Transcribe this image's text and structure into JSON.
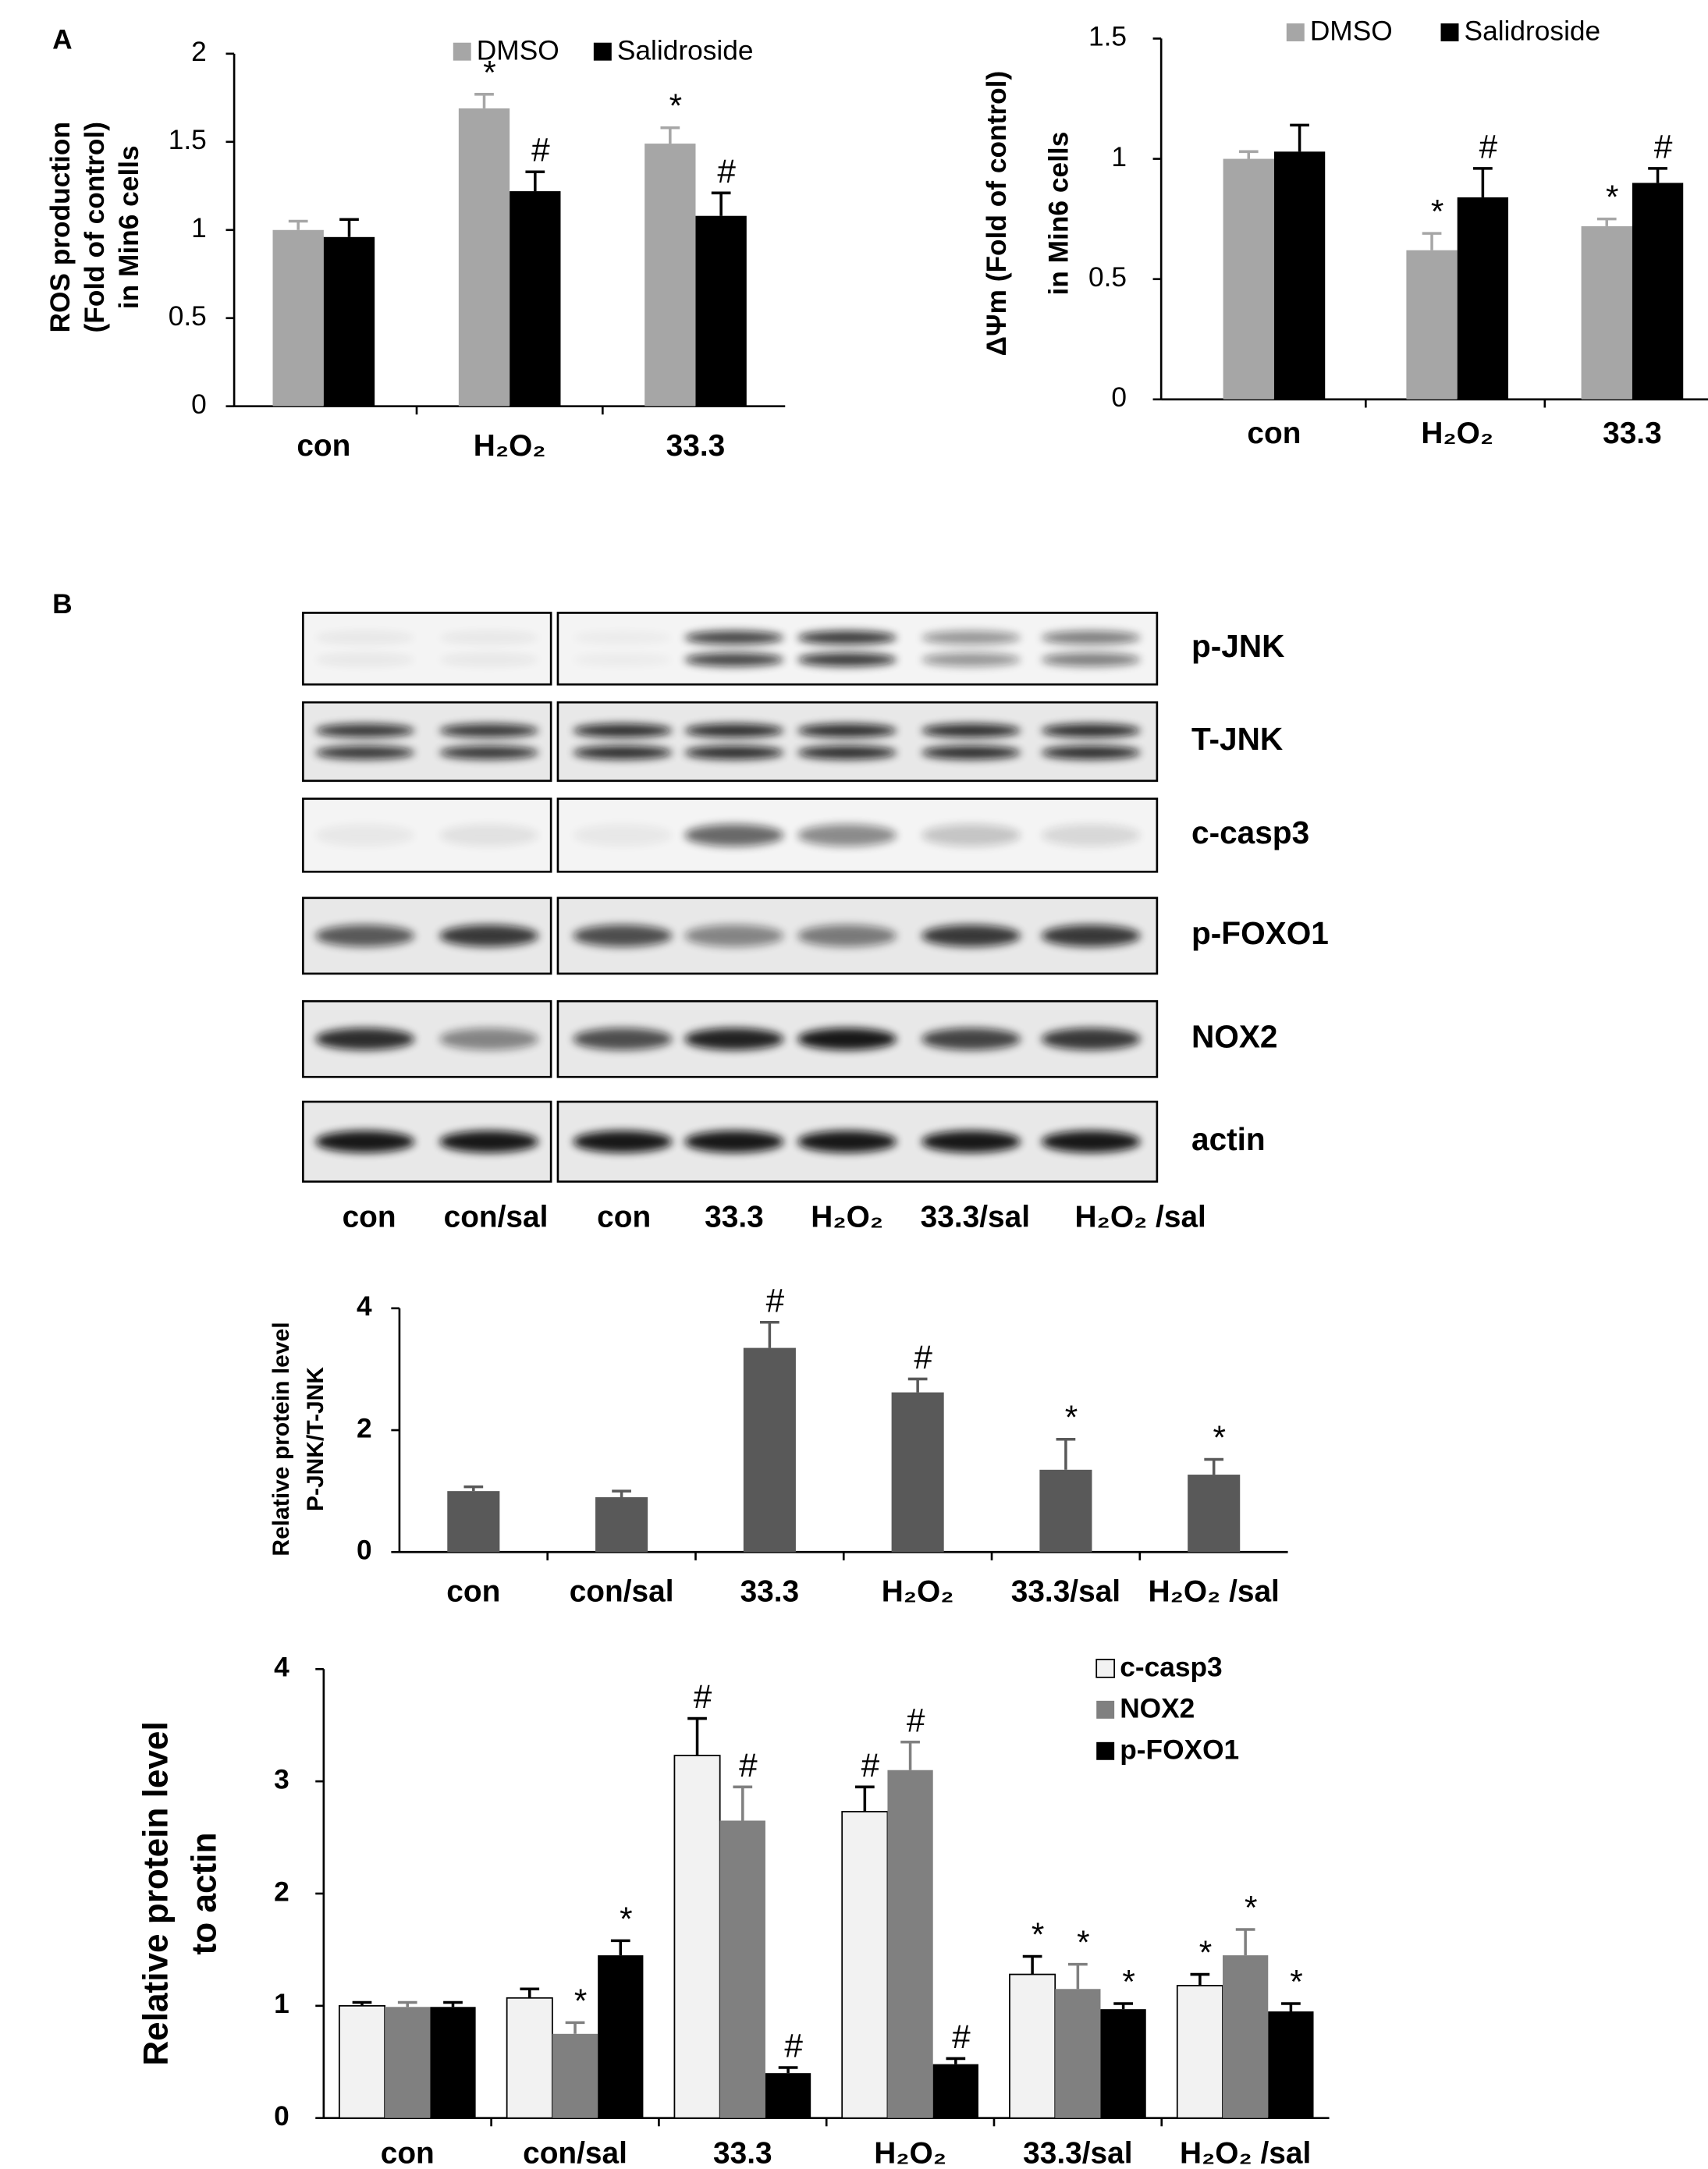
{
  "panels": [
    "A",
    "B"
  ],
  "blot": {
    "rows": [
      "p-JNK",
      "T-JNK",
      "c-casp3",
      "p-FOXO1",
      "NOX2",
      "actin"
    ],
    "lanes": [
      "con",
      "con/sal",
      "con",
      "33.3",
      "H₂O₂",
      "33.3/sal",
      "H₂O₂ /sal"
    ]
  },
  "chart_data": [
    {
      "type": "bar",
      "ylabel": [
        "ROS production",
        "(Fold of control)",
        "in Min6 cells"
      ],
      "categories": [
        "con",
        "H₂O₂",
        "33.3"
      ],
      "series": [
        {
          "name": "DMSO",
          "color": "#a6a6a6",
          "values": [
            1.0,
            1.69,
            1.49
          ],
          "errors": [
            0.05,
            0.08,
            0.09
          ],
          "annotations": [
            null,
            "*",
            "*"
          ]
        },
        {
          "name": "Salidroside",
          "color": "#000000",
          "values": [
            0.96,
            1.22,
            1.08
          ],
          "errors": [
            0.1,
            0.11,
            0.13
          ],
          "annotations": [
            null,
            "#",
            "#"
          ]
        }
      ],
      "ylim": [
        0,
        2
      ],
      "yticks": [
        0,
        0.5,
        1,
        1.5,
        2
      ]
    },
    {
      "type": "bar",
      "ylabel": [
        "ΔΨm (Fold of control)",
        "in Min6 cells"
      ],
      "categories": [
        "con",
        "H₂O₂",
        "33.3"
      ],
      "series": [
        {
          "name": "DMSO",
          "color": "#a6a6a6",
          "values": [
            1.0,
            0.62,
            0.72
          ],
          "errors": [
            0.03,
            0.07,
            0.03
          ],
          "annotations": [
            null,
            "*",
            "*"
          ]
        },
        {
          "name": "Salidroside",
          "color": "#000000",
          "values": [
            1.03,
            0.84,
            0.9
          ],
          "errors": [
            0.11,
            0.12,
            0.06
          ],
          "annotations": [
            null,
            "#",
            "#"
          ]
        }
      ],
      "ylim": [
        0,
        1.5
      ],
      "yticks": [
        0,
        0.5,
        1,
        1.5
      ]
    },
    {
      "type": "bar",
      "ylabel": [
        "Relative protein level",
        "P-JNK/T-JNK"
      ],
      "categories": [
        "con",
        "con/sal",
        "33.3",
        "H₂O₂",
        "33.3/sal",
        "H₂O₂ /sal"
      ],
      "series": [
        {
          "color": "#595959",
          "values": [
            1.0,
            0.9,
            3.35,
            2.62,
            1.35,
            1.27
          ],
          "errors": [
            0.07,
            0.1,
            0.42,
            0.22,
            0.5,
            0.25
          ],
          "annotations": [
            null,
            null,
            "#",
            "#",
            "*",
            "*"
          ]
        }
      ],
      "ylim": [
        0,
        4
      ],
      "yticks": [
        0,
        2,
        4
      ]
    },
    {
      "type": "bar",
      "ylabel": [
        "Relative protein level",
        "to actin"
      ],
      "categories": [
        "con",
        "con/sal",
        "33.3",
        "H₂O₂",
        "33.3/sal",
        "H₂O₂ /sal"
      ],
      "series": [
        {
          "name": "c-casp3",
          "color": "#f2f2f2",
          "values": [
            1.0,
            1.07,
            3.23,
            2.73,
            1.28,
            1.18
          ],
          "errors": [
            0.03,
            0.08,
            0.33,
            0.22,
            0.16,
            0.1
          ],
          "annotations": [
            null,
            null,
            "#",
            "#",
            "*",
            "*"
          ]
        },
        {
          "name": "NOX2",
          "color": "#808080",
          "values": [
            0.99,
            0.75,
            2.65,
            3.1,
            1.15,
            1.45
          ],
          "errors": [
            0.04,
            0.1,
            0.3,
            0.25,
            0.22,
            0.23
          ],
          "annotations": [
            null,
            "*",
            "#",
            "#",
            "*",
            "*"
          ]
        },
        {
          "name": "p-FOXO1",
          "color": "#000000",
          "values": [
            0.99,
            1.45,
            0.4,
            0.48,
            0.97,
            0.95
          ],
          "errors": [
            0.04,
            0.13,
            0.05,
            0.05,
            0.05,
            0.07
          ],
          "annotations": [
            null,
            "*",
            "#",
            "#",
            "*",
            "*"
          ]
        }
      ],
      "ylim": [
        0,
        4
      ],
      "yticks": [
        0,
        1,
        2,
        3,
        4
      ]
    }
  ]
}
